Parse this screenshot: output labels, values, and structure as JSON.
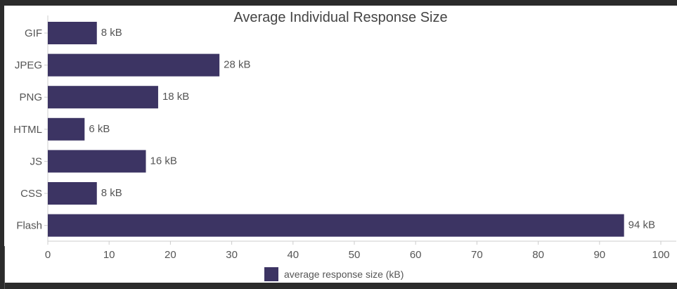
{
  "chart_data": {
    "type": "bar",
    "orientation": "horizontal",
    "title": "Average Individual Response Size",
    "categories": [
      "GIF",
      "JPEG",
      "PNG",
      "HTML",
      "JS",
      "CSS",
      "Flash"
    ],
    "series": [
      {
        "name": "average response size (kB)",
        "values": [
          8,
          28,
          18,
          6,
          16,
          8,
          94
        ],
        "data_labels": [
          "8 kB",
          "28 kB",
          "18 kB",
          "6 kB",
          "16 kB",
          "8 kB",
          "94 kB"
        ]
      }
    ],
    "xlim": [
      0,
      100
    ],
    "x_ticks": [
      "0",
      "10",
      "20",
      "30",
      "40",
      "50",
      "60",
      "70",
      "80",
      "90",
      "100"
    ],
    "grid": false,
    "legend_position": "bottom-center",
    "bar_color": "#3c3463",
    "text_color": "#555555"
  }
}
